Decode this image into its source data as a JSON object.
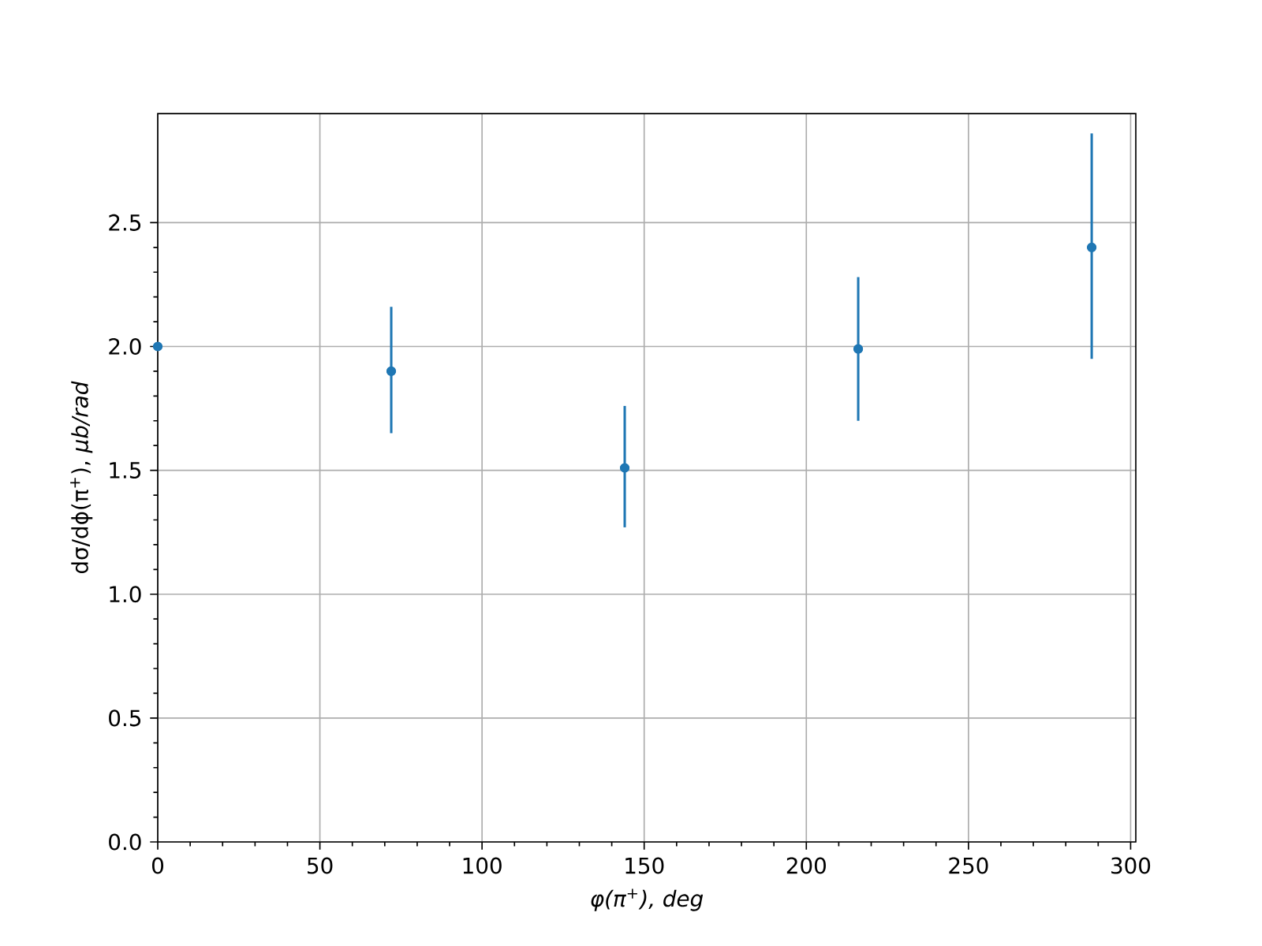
{
  "chart_data": {
    "type": "scatter",
    "xlabel": "*φ(π$^{+}$), deg*",
    "ylabel": "dσ/dϕ(π$^{+}$), *μb/rad*",
    "x": [
      0,
      72,
      144,
      216,
      288
    ],
    "values": [
      2.0,
      1.9,
      1.51,
      1.99,
      2.4
    ],
    "errors": [
      null,
      [
        1.65,
        2.16
      ],
      [
        1.27,
        1.76
      ],
      [
        1.7,
        2.28
      ],
      [
        1.95,
        2.86
      ]
    ],
    "color": "#1f77b4",
    "marker": "circle",
    "xlim": [
      0,
      301.6
    ],
    "ylim": [
      0,
      2.94
    ],
    "xticks": [
      0,
      50,
      100,
      150,
      200,
      250,
      300
    ],
    "yticks": [
      {
        "value": 0,
        "label": "0.0"
      },
      {
        "value": 0.5,
        "label": "0.5"
      },
      {
        "value": 1,
        "label": "1.0"
      },
      {
        "value": 1.5,
        "label": "1.5"
      },
      {
        "value": 2,
        "label": "2.0"
      },
      {
        "value": 2.5,
        "label": "2.5"
      }
    ],
    "grid": true
  }
}
